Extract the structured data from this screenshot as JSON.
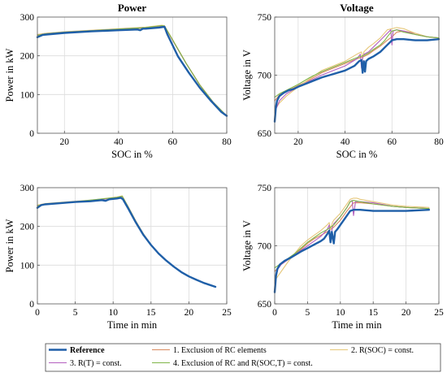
{
  "legend": {
    "series": [
      {
        "name": "Reference",
        "color": "#1f5fa8",
        "width": 2.4,
        "bold": true
      },
      {
        "name": "1. Exclusion of RC elements",
        "color": "#d98a5f",
        "width": 1.1
      },
      {
        "name": "2. R(SOC) = const.",
        "color": "#e6c77a",
        "width": 1.1
      },
      {
        "name": "3. R(T) = const.",
        "color": "#b35fbf",
        "width": 1.1
      },
      {
        "name": "4. Exclusion of RC and R(SOC,T) = const.",
        "color": "#7fb548",
        "width": 1.1
      }
    ]
  },
  "chart_data": [
    {
      "type": "line",
      "title": "Power",
      "xlabel": "SOC in %",
      "ylabel": "Power in kW",
      "xlim": [
        10,
        80
      ],
      "ylim": [
        0,
        300
      ],
      "xticks": [
        20,
        40,
        60,
        80
      ],
      "yticks": [
        0,
        100,
        200,
        300
      ],
      "grid": true,
      "series": [
        {
          "name": "Reference",
          "x": [
            10,
            12,
            15,
            20,
            30,
            40,
            47,
            48,
            49,
            50,
            55,
            57,
            58,
            62,
            66,
            70,
            74,
            78,
            80
          ],
          "y": [
            248,
            254,
            256,
            259,
            263,
            266,
            268,
            266,
            270,
            270,
            273,
            275,
            256,
            198,
            156,
            118,
            85,
            55,
            45
          ]
        },
        {
          "name": "1. Exclusion of RC elements",
          "x": [
            10,
            13,
            20,
            30,
            40,
            50,
            56,
            57,
            60,
            65,
            70,
            75,
            80
          ],
          "y": [
            255,
            258,
            261,
            265,
            268,
            272,
            277,
            276,
            240,
            180,
            125,
            80,
            45
          ]
        },
        {
          "name": "2. R(SOC) = const.",
          "x": [
            10,
            13,
            20,
            30,
            40,
            50,
            56,
            57,
            60,
            65,
            70,
            75,
            80
          ],
          "y": [
            254,
            258,
            262,
            266,
            270,
            274,
            279,
            278,
            242,
            181,
            126,
            80,
            45
          ]
        },
        {
          "name": "3. R(T) = const.",
          "x": [
            10,
            13,
            20,
            30,
            40,
            50,
            56,
            57,
            60,
            65,
            70,
            75,
            80
          ],
          "y": [
            252,
            257,
            261,
            265,
            269,
            273,
            277,
            276,
            240,
            180,
            125,
            80,
            45
          ]
        },
        {
          "name": "4. Exclusion of RC and R(SOC,T) = const.",
          "x": [
            10,
            13,
            20,
            30,
            40,
            50,
            56,
            57,
            60,
            65,
            70,
            75,
            80
          ],
          "y": [
            253,
            257,
            261,
            265,
            269,
            273,
            278,
            277,
            241,
            180,
            125,
            80,
            45
          ]
        }
      ]
    },
    {
      "type": "line",
      "title": "Voltage",
      "xlabel": "SOC in %",
      "ylabel": "Voltage in V",
      "xlim": [
        10,
        80
      ],
      "ylim": [
        650,
        750
      ],
      "xticks": [
        20,
        40,
        60,
        80
      ],
      "yticks": [
        650,
        700,
        750
      ],
      "grid": true,
      "series": [
        {
          "name": "Reference",
          "x": [
            10,
            10.5,
            11,
            12,
            14,
            16,
            18,
            20,
            25,
            30,
            35,
            40,
            44,
            46,
            47,
            47.5,
            48,
            48.5,
            49,
            50,
            52,
            55,
            58,
            60,
            62,
            65,
            70,
            75,
            80
          ],
          "y": [
            660,
            672,
            678,
            682,
            685,
            687,
            688,
            690,
            694,
            698,
            701,
            704,
            708,
            712,
            713,
            702,
            712,
            703,
            712,
            714,
            716,
            720,
            726,
            730,
            731,
            731,
            730,
            730,
            731
          ]
        },
        {
          "name": "1. Exclusion of RC elements",
          "x": [
            10,
            12,
            15,
            20,
            25,
            30,
            35,
            40,
            45,
            48,
            50,
            52,
            55,
            58,
            60,
            62,
            65,
            70,
            75,
            80
          ],
          "y": [
            678,
            683,
            686,
            691,
            696,
            702,
            706,
            710,
            714,
            716,
            718,
            721,
            725,
            730,
            733,
            737,
            738,
            736,
            733,
            732
          ]
        },
        {
          "name": "2. R(SOC) = const.",
          "x": [
            10,
            12,
            15,
            20,
            25,
            30,
            35,
            40,
            45,
            47,
            47.5,
            48,
            50,
            52,
            55,
            58,
            60,
            62,
            65,
            70,
            75,
            80
          ],
          "y": [
            670,
            676,
            682,
            690,
            697,
            704,
            708,
            712,
            718,
            720,
            714,
            720,
            724,
            727,
            732,
            739,
            740,
            741,
            740,
            736,
            733,
            732
          ]
        },
        {
          "name": "3. R(T) = const.",
          "x": [
            10,
            12,
            15,
            20,
            25,
            30,
            35,
            40,
            45,
            46.5,
            47,
            47.5,
            48,
            50,
            52,
            55,
            58,
            59.5,
            60,
            60.5,
            62,
            65,
            70,
            75,
            80
          ],
          "y": [
            668,
            678,
            684,
            690,
            695,
            700,
            704,
            708,
            714,
            718,
            706,
            715,
            718,
            720,
            724,
            730,
            736,
            739,
            726,
            738,
            739,
            738,
            735,
            733,
            732
          ]
        },
        {
          "name": "4. Exclusion of RC and R(SOC,T) = const.",
          "x": [
            10,
            12,
            15,
            20,
            25,
            30,
            35,
            40,
            45,
            48,
            50,
            52,
            55,
            57,
            58,
            60,
            62,
            65,
            70,
            75,
            80
          ],
          "y": [
            681,
            684,
            687,
            692,
            698,
            703,
            707,
            711,
            715,
            717,
            719,
            722,
            726,
            730,
            733,
            738,
            739,
            737,
            735,
            733,
            732
          ]
        }
      ]
    },
    {
      "type": "line",
      "title": "",
      "xlabel": "Time in min",
      "ylabel": "Power in kW",
      "xlim": [
        0,
        25
      ],
      "ylim": [
        0,
        300
      ],
      "xticks": [
        0,
        5,
        10,
        15,
        20,
        25
      ],
      "yticks": [
        0,
        100,
        200,
        300
      ],
      "grid": true,
      "series": [
        {
          "name": "Reference",
          "x": [
            0,
            0.5,
            1,
            3,
            5,
            7,
            8.5,
            9,
            9.5,
            10.5,
            11,
            11.3,
            12,
            13,
            14,
            15,
            16,
            17,
            18,
            19,
            20,
            21,
            22,
            23.5
          ],
          "y": [
            248,
            255,
            257,
            260,
            263,
            265,
            268,
            266,
            270,
            272,
            274,
            270,
            246,
            210,
            178,
            152,
            130,
            112,
            96,
            82,
            71,
            62,
            54,
            44
          ]
        },
        {
          "name": "1. Exclusion of RC elements",
          "x": [
            0,
            1,
            3,
            5,
            7,
            9,
            10.5,
            11.2,
            12,
            13,
            14,
            15,
            16,
            17,
            18,
            19,
            20,
            21,
            22,
            23.5
          ],
          "y": [
            254,
            258,
            261,
            264,
            267,
            271,
            275,
            278,
            250,
            213,
            180,
            153,
            131,
            112,
            96,
            82,
            71,
            62,
            54,
            44
          ]
        },
        {
          "name": "2. R(SOC) = const.",
          "x": [
            0,
            1,
            3,
            5,
            7,
            9,
            10.5,
            11.2,
            12,
            13,
            14,
            15,
            16,
            17,
            18,
            19,
            20,
            21,
            22,
            23.5
          ],
          "y": [
            255,
            259,
            262,
            265,
            268,
            272,
            276,
            279,
            251,
            214,
            181,
            153,
            131,
            112,
            96,
            82,
            71,
            62,
            54,
            44
          ]
        },
        {
          "name": "3. R(T) = const.",
          "x": [
            0,
            1,
            3,
            5,
            7,
            9,
            10.5,
            11.2,
            12,
            13,
            14,
            15,
            16,
            17,
            18,
            19,
            20,
            21,
            22,
            23.5
          ],
          "y": [
            252,
            257,
            260,
            264,
            267,
            271,
            275,
            277,
            250,
            213,
            180,
            153,
            131,
            112,
            96,
            82,
            71,
            62,
            54,
            44
          ]
        },
        {
          "name": "4. Exclusion of RC and R(SOC,T) = const.",
          "x": [
            0,
            1,
            3,
            5,
            7,
            9,
            10.5,
            11.2,
            12,
            13,
            14,
            15,
            16,
            17,
            18,
            19,
            20,
            21,
            22,
            23.5
          ],
          "y": [
            253,
            258,
            261,
            264,
            268,
            272,
            275,
            278,
            250,
            213,
            180,
            153,
            131,
            112,
            96,
            82,
            71,
            62,
            54,
            44
          ]
        }
      ]
    },
    {
      "type": "line",
      "title": "",
      "xlabel": "Time in min",
      "ylabel": "Voltage in V",
      "xlim": [
        0,
        25
      ],
      "ylim": [
        650,
        750
      ],
      "xticks": [
        0,
        5,
        10,
        15,
        20,
        25
      ],
      "yticks": [
        650,
        700,
        750
      ],
      "grid": true,
      "series": [
        {
          "name": "Reference",
          "x": [
            0,
            0.2,
            0.4,
            0.8,
            1.5,
            2.5,
            4,
            5,
            6,
            7,
            7.5,
            8,
            8.3,
            8.5,
            8.7,
            9,
            9.2,
            9.5,
            10,
            11,
            11.5,
            12,
            13,
            15,
            18,
            20,
            23.5
          ],
          "y": [
            660,
            674,
            680,
            684,
            687,
            690,
            695,
            698,
            701,
            704,
            706,
            710,
            713,
            703,
            712,
            702,
            712,
            714,
            718,
            726,
            730,
            731,
            731,
            730,
            730,
            730,
            731
          ]
        },
        {
          "name": "1. Exclusion of RC elements",
          "x": [
            0,
            1,
            2,
            3,
            4,
            5,
            6,
            7,
            8,
            9,
            10,
            11,
            12,
            13,
            15,
            18,
            20,
            23.5
          ],
          "y": [
            678,
            684,
            688,
            692,
            697,
            702,
            706,
            709,
            712,
            716,
            722,
            730,
            737,
            737,
            736,
            734,
            733,
            732
          ]
        },
        {
          "name": "2. R(SOC) = const.",
          "x": [
            0,
            1,
            2,
            3,
            4,
            5,
            6,
            7,
            8,
            8.3,
            8.5,
            8.8,
            9,
            10,
            11,
            11.5,
            12,
            12.5,
            13,
            15,
            18,
            20,
            23.5
          ],
          "y": [
            670,
            678,
            686,
            693,
            700,
            705,
            709,
            713,
            718,
            720,
            714,
            720,
            722,
            728,
            736,
            740,
            741,
            741,
            740,
            738,
            735,
            734,
            733
          ]
        },
        {
          "name": "3. R(T) = const.",
          "x": [
            0,
            0.5,
            1,
            2,
            3,
            4,
            5,
            6,
            7,
            8,
            8.3,
            8.5,
            8.8,
            9,
            10,
            11,
            11.5,
            11.8,
            12,
            12.3,
            13,
            15,
            18,
            20,
            23.5
          ],
          "y": [
            668,
            680,
            684,
            688,
            692,
            696,
            700,
            704,
            708,
            714,
            718,
            706,
            716,
            719,
            725,
            733,
            738,
            739,
            726,
            738,
            738,
            737,
            734,
            733,
            732
          ]
        },
        {
          "name": "4. Exclusion of RC and R(SOC,T) = const.",
          "x": [
            0,
            1,
            2,
            3,
            4,
            5,
            6,
            7,
            8,
            9,
            10,
            11,
            11.5,
            12,
            13,
            15,
            18,
            20,
            23.5
          ],
          "y": [
            681,
            685,
            689,
            693,
            698,
            703,
            707,
            711,
            714,
            718,
            725,
            733,
            738,
            739,
            738,
            736,
            734,
            733,
            732
          ]
        }
      ]
    }
  ]
}
